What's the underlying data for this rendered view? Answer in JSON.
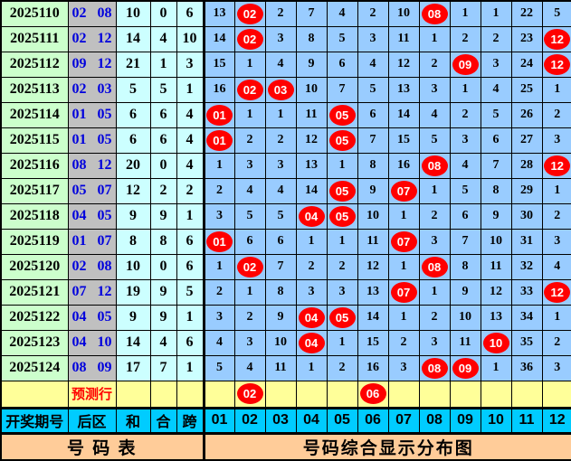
{
  "colors": {
    "period_cell": "#ccffcc",
    "back_zone_cell": "#c0c0c0",
    "back_zone_text": "#0000dd",
    "stat_cell": "#ccffff",
    "grid_cell": "#99ccff",
    "prediction_row": "#ffff99",
    "prediction_text": "#ff0000",
    "header_row": "#00ccff",
    "footer_row": "#ffcc99",
    "ball_fill": "#ff0000",
    "ball_text": "#ffffff",
    "border": "#000000"
  },
  "chart_data": {
    "type": "table",
    "title": "号码综合显示分布图",
    "left_title": "号  码  表",
    "header": {
      "period": "开奖期号",
      "back": "后区",
      "sum": "和",
      "union": "合",
      "span": "跨",
      "numbers": [
        "01",
        "02",
        "03",
        "04",
        "05",
        "06",
        "07",
        "08",
        "09",
        "10",
        "11",
        "12"
      ]
    },
    "rows": [
      {
        "period": "2025110",
        "back": [
          "02",
          "08"
        ],
        "sum": "10",
        "union": "0",
        "span": "6",
        "grid": [
          "13",
          "B02",
          "2",
          "7",
          "4",
          "2",
          "10",
          "B08",
          "1",
          "1",
          "22",
          "5"
        ]
      },
      {
        "period": "2025111",
        "back": [
          "02",
          "12"
        ],
        "sum": "14",
        "union": "4",
        "span": "10",
        "grid": [
          "14",
          "B02",
          "3",
          "8",
          "5",
          "3",
          "11",
          "1",
          "2",
          "2",
          "23",
          "B12"
        ]
      },
      {
        "period": "2025112",
        "back": [
          "09",
          "12"
        ],
        "sum": "21",
        "union": "1",
        "span": "3",
        "grid": [
          "15",
          "1",
          "4",
          "9",
          "6",
          "4",
          "12",
          "2",
          "B09",
          "3",
          "24",
          "B12"
        ]
      },
      {
        "period": "2025113",
        "back": [
          "02",
          "03"
        ],
        "sum": "5",
        "union": "5",
        "span": "1",
        "grid": [
          "16",
          "B02",
          "B03",
          "10",
          "7",
          "5",
          "13",
          "3",
          "1",
          "4",
          "25",
          "1"
        ]
      },
      {
        "period": "2025114",
        "back": [
          "01",
          "05"
        ],
        "sum": "6",
        "union": "6",
        "span": "4",
        "grid": [
          "B01",
          "1",
          "1",
          "11",
          "B05",
          "6",
          "14",
          "4",
          "2",
          "5",
          "26",
          "2"
        ]
      },
      {
        "period": "2025115",
        "back": [
          "01",
          "05"
        ],
        "sum": "6",
        "union": "6",
        "span": "4",
        "grid": [
          "B01",
          "2",
          "2",
          "12",
          "B05",
          "7",
          "15",
          "5",
          "3",
          "6",
          "27",
          "3"
        ]
      },
      {
        "period": "2025116",
        "back": [
          "08",
          "12"
        ],
        "sum": "20",
        "union": "0",
        "span": "4",
        "grid": [
          "1",
          "3",
          "3",
          "13",
          "1",
          "8",
          "16",
          "B08",
          "4",
          "7",
          "28",
          "B12"
        ]
      },
      {
        "period": "2025117",
        "back": [
          "05",
          "07"
        ],
        "sum": "12",
        "union": "2",
        "span": "2",
        "grid": [
          "2",
          "4",
          "4",
          "14",
          "B05",
          "9",
          "B07",
          "1",
          "5",
          "8",
          "29",
          "1"
        ]
      },
      {
        "period": "2025118",
        "back": [
          "04",
          "05"
        ],
        "sum": "9",
        "union": "9",
        "span": "1",
        "grid": [
          "3",
          "5",
          "5",
          "B04",
          "B05",
          "10",
          "1",
          "2",
          "6",
          "9",
          "30",
          "2"
        ]
      },
      {
        "period": "2025119",
        "back": [
          "01",
          "07"
        ],
        "sum": "8",
        "union": "8",
        "span": "6",
        "grid": [
          "B01",
          "6",
          "6",
          "1",
          "1",
          "11",
          "B07",
          "3",
          "7",
          "10",
          "31",
          "3"
        ]
      },
      {
        "period": "2025120",
        "back": [
          "02",
          "08"
        ],
        "sum": "10",
        "union": "0",
        "span": "6",
        "grid": [
          "1",
          "B02",
          "7",
          "2",
          "2",
          "12",
          "1",
          "B08",
          "8",
          "11",
          "32",
          "4"
        ]
      },
      {
        "period": "2025121",
        "back": [
          "07",
          "12"
        ],
        "sum": "19",
        "union": "9",
        "span": "5",
        "grid": [
          "2",
          "1",
          "8",
          "3",
          "3",
          "13",
          "B07",
          "1",
          "9",
          "12",
          "33",
          "B12"
        ]
      },
      {
        "period": "2025122",
        "back": [
          "04",
          "05"
        ],
        "sum": "9",
        "union": "9",
        "span": "1",
        "grid": [
          "3",
          "2",
          "9",
          "B04",
          "B05",
          "14",
          "1",
          "2",
          "10",
          "13",
          "34",
          "1"
        ]
      },
      {
        "period": "2025123",
        "back": [
          "04",
          "10"
        ],
        "sum": "14",
        "union": "4",
        "span": "6",
        "grid": [
          "4",
          "3",
          "10",
          "B04",
          "1",
          "15",
          "2",
          "3",
          "11",
          "B10",
          "35",
          "2"
        ]
      },
      {
        "period": "2025124",
        "back": [
          "08",
          "09"
        ],
        "sum": "17",
        "union": "7",
        "span": "1",
        "grid": [
          "5",
          "4",
          "11",
          "1",
          "2",
          "16",
          "3",
          "B08",
          "B09",
          "1",
          "36",
          "3"
        ]
      }
    ],
    "prediction": {
      "label": "预测行",
      "grid": [
        "",
        "B02",
        "",
        "",
        "",
        "B06",
        "",
        "",
        "",
        "",
        "",
        ""
      ]
    },
    "footer": {
      "left": "号  码  表",
      "right": "号码综合显示分布图"
    }
  }
}
